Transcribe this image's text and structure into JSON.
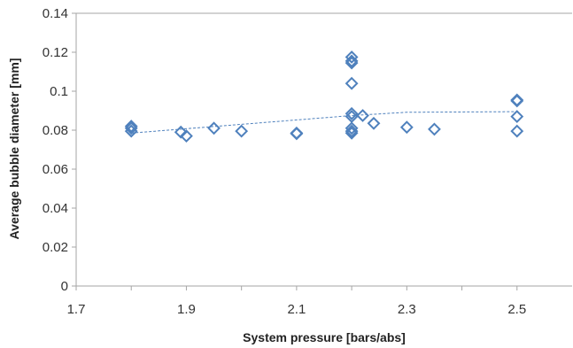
{
  "chart_data": {
    "type": "scatter",
    "title": "",
    "xlabel": "System pressure [bars/abs]",
    "ylabel": "Average bubble diameter [mm]",
    "xlim": [
      1.7,
      2.6
    ],
    "ylim": [
      0,
      0.14
    ],
    "x_ticks": [
      "1.7",
      "1.9",
      "2.1",
      "2.3",
      "2.5"
    ],
    "y_ticks": [
      "0",
      "0.02",
      "0.04",
      "0.06",
      "0.08",
      "0.1",
      "0.12",
      "0.14"
    ],
    "grid": false,
    "legend": "none",
    "marker": "open-diamond",
    "marker_color": "#4F81BD",
    "trendline": {
      "style": "dashed",
      "color": "#4F81BD",
      "points": [
        [
          1.8,
          0.0785
        ],
        [
          2.0,
          0.083
        ],
        [
          2.2,
          0.0875
        ],
        [
          2.3,
          0.0892
        ],
        [
          2.5,
          0.0895
        ]
      ]
    },
    "series": [
      {
        "points": [
          [
            1.8,
            0.082
          ],
          [
            1.8,
            0.081
          ],
          [
            1.8,
            0.0795
          ],
          [
            1.89,
            0.079
          ],
          [
            1.9,
            0.077
          ],
          [
            1.95,
            0.081
          ],
          [
            2.0,
            0.0795
          ],
          [
            2.1,
            0.0785
          ],
          [
            2.1,
            0.0782
          ],
          [
            2.2,
            0.1175
          ],
          [
            2.2,
            0.1155
          ],
          [
            2.2,
            0.1145
          ],
          [
            2.2,
            0.104
          ],
          [
            2.2,
            0.0885
          ],
          [
            2.2,
            0.087
          ],
          [
            2.2,
            0.081
          ],
          [
            2.2,
            0.0795
          ],
          [
            2.2,
            0.0785
          ],
          [
            2.22,
            0.0875
          ],
          [
            2.24,
            0.0835
          ],
          [
            2.3,
            0.0815
          ],
          [
            2.35,
            0.0805
          ],
          [
            2.5,
            0.0955
          ],
          [
            2.5,
            0.095
          ],
          [
            2.5,
            0.087
          ],
          [
            2.5,
            0.0795
          ]
        ]
      }
    ]
  }
}
